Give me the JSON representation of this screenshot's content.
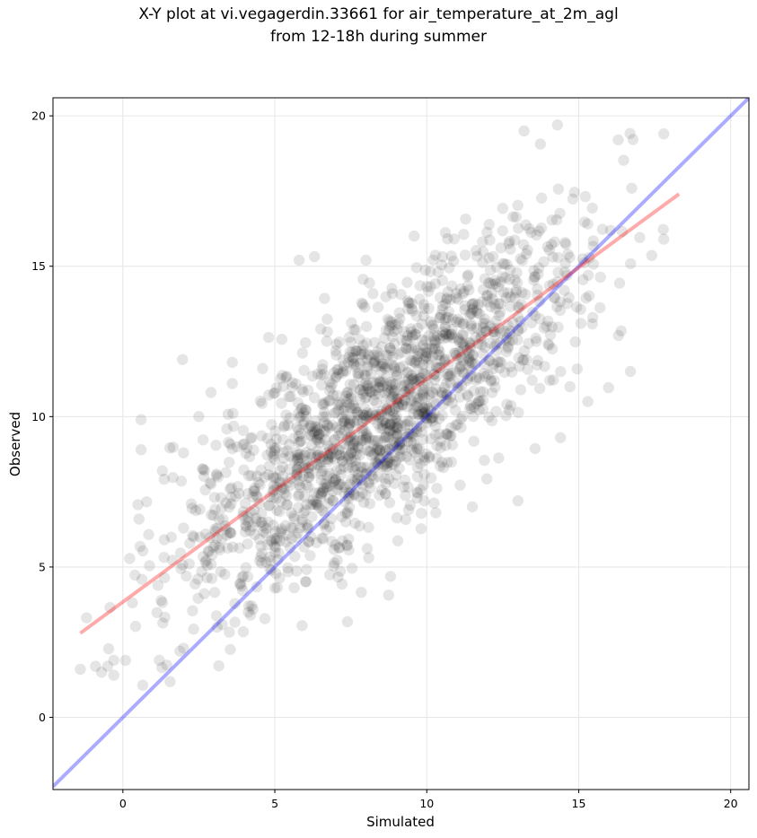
{
  "chart_data": {
    "type": "scatter",
    "title_line1": "X-Y plot at vi.vegagerdin.33661 for air_temperature_at_2m_agl",
    "title_line2": "from 12-18h during summer",
    "xlabel": "Simulated",
    "ylabel": "Observed",
    "xlim": [
      -2.3,
      20.6
    ],
    "ylim": [
      -2.4,
      20.6
    ],
    "xticks": [
      0,
      5,
      10,
      15,
      20
    ],
    "yticks": [
      0,
      5,
      10,
      15,
      20
    ],
    "grid": true,
    "point_color": "#000000",
    "point_alpha": 0.1,
    "fit_line": {
      "color": "#ff0000",
      "x": [
        -1.4,
        18.3
      ],
      "y": [
        2.8,
        17.4
      ]
    },
    "identity_line": {
      "color": "#0000ff",
      "x": [
        -2.3,
        20.6
      ],
      "y": [
        -2.3,
        20.6
      ]
    },
    "scatter_model": {
      "count": 1700,
      "slope": 0.74,
      "intercept": 3.85,
      "x_mean": 8.5,
      "x_sd": 3.3,
      "resid_sd": 1.85,
      "x_min": -1.4,
      "x_max": 18.3
    },
    "points": [
      {
        "x": -1.4,
        "y": 1.6
      },
      {
        "x": -0.9,
        "y": 1.7
      },
      {
        "x": -0.7,
        "y": 1.5
      },
      {
        "x": -0.5,
        "y": 1.7
      },
      {
        "x": -0.3,
        "y": 1.9
      },
      {
        "x": -0.3,
        "y": 1.4
      },
      {
        "x": 0.6,
        "y": 9.9
      },
      {
        "x": 0.6,
        "y": 8.9
      },
      {
        "x": 1.3,
        "y": 8.2
      },
      {
        "x": 2.5,
        "y": 10.0
      },
      {
        "x": 2.9,
        "y": 10.8
      },
      {
        "x": 3.6,
        "y": 11.1
      },
      {
        "x": 4.6,
        "y": 11.6
      },
      {
        "x": 5.8,
        "y": 15.2
      },
      {
        "x": 8.0,
        "y": 15.2
      },
      {
        "x": 13.2,
        "y": 19.5
      },
      {
        "x": 14.3,
        "y": 19.7
      },
      {
        "x": 16.3,
        "y": 19.2
      },
      {
        "x": 17.8,
        "y": 19.4
      },
      {
        "x": 17.8,
        "y": 15.9
      },
      {
        "x": 16.7,
        "y": 11.5
      },
      {
        "x": 15.3,
        "y": 10.5
      },
      {
        "x": 14.4,
        "y": 9.3
      },
      {
        "x": 13.0,
        "y": 7.2
      },
      {
        "x": 10.3,
        "y": 6.8
      },
      {
        "x": 11.5,
        "y": 7.0
      },
      {
        "x": 9.4,
        "y": 6.9
      },
      {
        "x": 5.0,
        "y": 4.3
      },
      {
        "x": 4.2,
        "y": 3.4
      },
      {
        "x": 3.1,
        "y": 3.0
      },
      {
        "x": 1.2,
        "y": 1.9
      },
      {
        "x": 2.0,
        "y": 2.3
      }
    ]
  }
}
